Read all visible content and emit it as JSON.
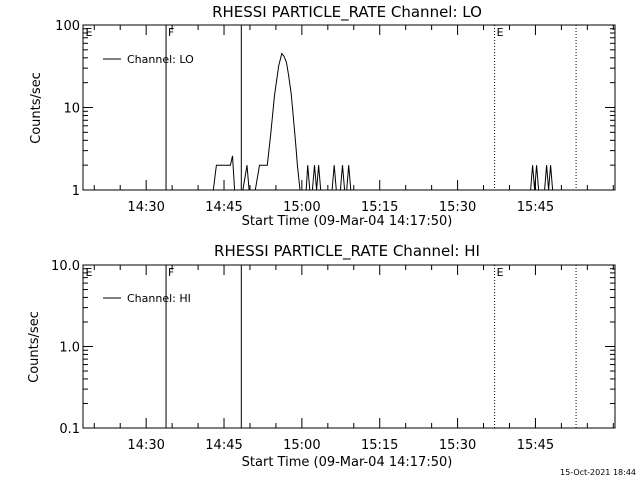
{
  "chart_data": [
    {
      "type": "line",
      "title": "RHESSI PARTICLE_RATE Channel: LO",
      "ylabel": "Counts/sec",
      "xlabel": "Start Time (09-Mar-04 14:17:50)",
      "ylog": true,
      "ylim": [
        1,
        100
      ],
      "yticks": [
        "1",
        "10",
        "100"
      ],
      "xlim_minutes": [
        0,
        102.5
      ],
      "xtick_labels": [
        "14:30",
        "14:45",
        "15:00",
        "15:15",
        "15:30",
        "15:45"
      ],
      "markers": [
        {
          "label": "E",
          "time_min": 0,
          "style": "dotted"
        },
        {
          "label": "F",
          "time_min": 16,
          "style": "solid"
        },
        {
          "label": "",
          "time_min": 30.5,
          "style": "solid"
        },
        {
          "label": "E",
          "time_min": 79.3,
          "style": "dotted"
        },
        {
          "label": "",
          "time_min": 95,
          "style": "dotted"
        }
      ],
      "legend": {
        "position": "top-left",
        "entries": [
          "Channel: LO"
        ]
      },
      "series": [
        {
          "name": "Channel: LO",
          "x": [
            24.3,
            25.1,
            25.7,
            26.4,
            27.1,
            27.8,
            28.4,
            28.8,
            29.2,
            29.6,
            30.2,
            30.8,
            31.6,
            32.0,
            32.4,
            33.2,
            34.0,
            34.8,
            35.5,
            36.2,
            36.9,
            37.7,
            38.3,
            38.7,
            39.2,
            39.6,
            40.1,
            40.5,
            41.0,
            41.3,
            41.8,
            42.3,
            43.0,
            43.3,
            43.7,
            44.2,
            44.6,
            45.0,
            45.4,
            45.8,
            48.0,
            48.4,
            48.8,
            49.2,
            49.6,
            50.0,
            50.4,
            50.8,
            51.2,
            51.6
          ],
          "y": [
            1,
            1,
            2,
            2,
            2,
            2,
            2,
            2.6,
            1,
            1,
            1,
            1,
            2,
            1,
            1,
            1,
            2,
            2,
            2,
            5,
            14,
            32,
            45,
            42,
            35,
            25,
            15,
            8,
            3.5,
            2,
            1,
            1,
            1,
            2,
            1,
            1,
            2,
            1,
            2,
            1,
            1,
            2,
            1,
            1,
            1,
            2,
            1,
            1,
            2,
            1
          ]
        }
      ],
      "burst_markers": [
        {
          "time_min": 87.0,
          "y": 2
        },
        {
          "time_min": 89.7,
          "y": 2
        }
      ]
    },
    {
      "type": "line",
      "title": "RHESSI PARTICLE_RATE Channel: HI",
      "ylabel": "Counts/sec",
      "xlabel": "Start Time (09-Mar-04 14:17:50)",
      "ylog": true,
      "ylim": [
        0.1,
        10
      ],
      "yticks": [
        "0.1",
        "1.0",
        "10.0"
      ],
      "xlim_minutes": [
        0,
        102.5
      ],
      "xtick_labels": [
        "14:30",
        "14:45",
        "15:00",
        "15:15",
        "15:30",
        "15:45"
      ],
      "markers": [
        {
          "label": "E",
          "time_min": 0,
          "style": "dotted"
        },
        {
          "label": "F",
          "time_min": 16,
          "style": "solid"
        },
        {
          "label": "",
          "time_min": 30.5,
          "style": "solid"
        },
        {
          "label": "E",
          "time_min": 79.3,
          "style": "dotted"
        },
        {
          "label": "",
          "time_min": 95,
          "style": "dotted"
        }
      ],
      "legend": {
        "position": "top-left",
        "entries": [
          "Channel: HI"
        ]
      },
      "series": [
        {
          "name": "Channel: HI",
          "x": [],
          "y": []
        }
      ]
    }
  ],
  "footer": {
    "timestamp": "15-Oct-2021 18:44"
  }
}
